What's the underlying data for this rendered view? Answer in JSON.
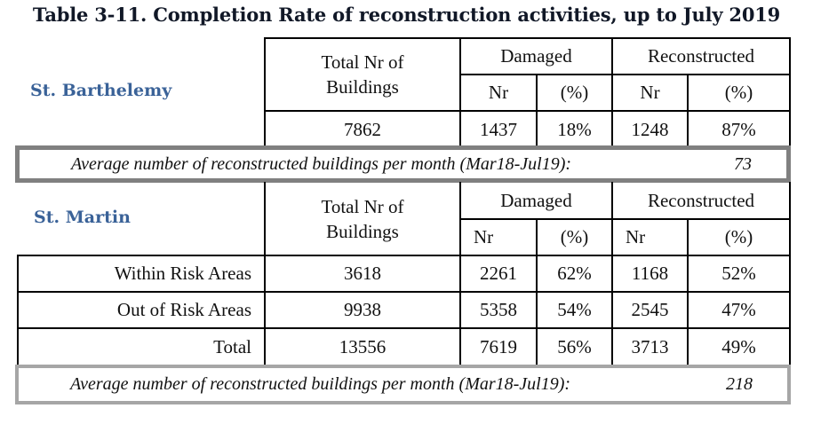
{
  "title": "Table 3-11. Completion Rate of reconstruction activities, up to July 2019",
  "colors": {
    "region_label": "#3a6298",
    "avg_box_border_1": "#808080",
    "avg_box_border_2": "#a6a6a6",
    "grid": "#000000"
  },
  "headers": {
    "total_line1": "Total Nr of",
    "total_line2": "Buildings",
    "damaged": "Damaged",
    "reconstructed": "Reconstructed",
    "nr": "Nr",
    "pct": "(%)"
  },
  "st_barthelemy": {
    "label": "St. Barthelemy",
    "row": {
      "total": "7862",
      "damaged_nr": "1437",
      "damaged_pct": "18%",
      "reconstructed_nr": "1248",
      "reconstructed_pct": "87%"
    },
    "average": {
      "label": "Average number of reconstructed buildings per month (Mar18-Jul19):",
      "value": "73"
    }
  },
  "st_martin": {
    "label": "St. Martin",
    "rows": [
      {
        "name": "Within Risk Areas",
        "total": "3618",
        "damaged_nr": "2261",
        "damaged_pct": "62%",
        "reconstructed_nr": "1168",
        "reconstructed_pct": "52%"
      },
      {
        "name": "Out of Risk Areas",
        "total": "9938",
        "damaged_nr": "5358",
        "damaged_pct": "54%",
        "reconstructed_nr": "2545",
        "reconstructed_pct": "47%"
      },
      {
        "name": "Total",
        "total": "13556",
        "damaged_nr": "7619",
        "damaged_pct": "56%",
        "reconstructed_nr": "3713",
        "reconstructed_pct": "49%"
      }
    ],
    "average": {
      "label": "Average number of reconstructed buildings per month (Mar18-Jul19):",
      "value": "218"
    }
  }
}
